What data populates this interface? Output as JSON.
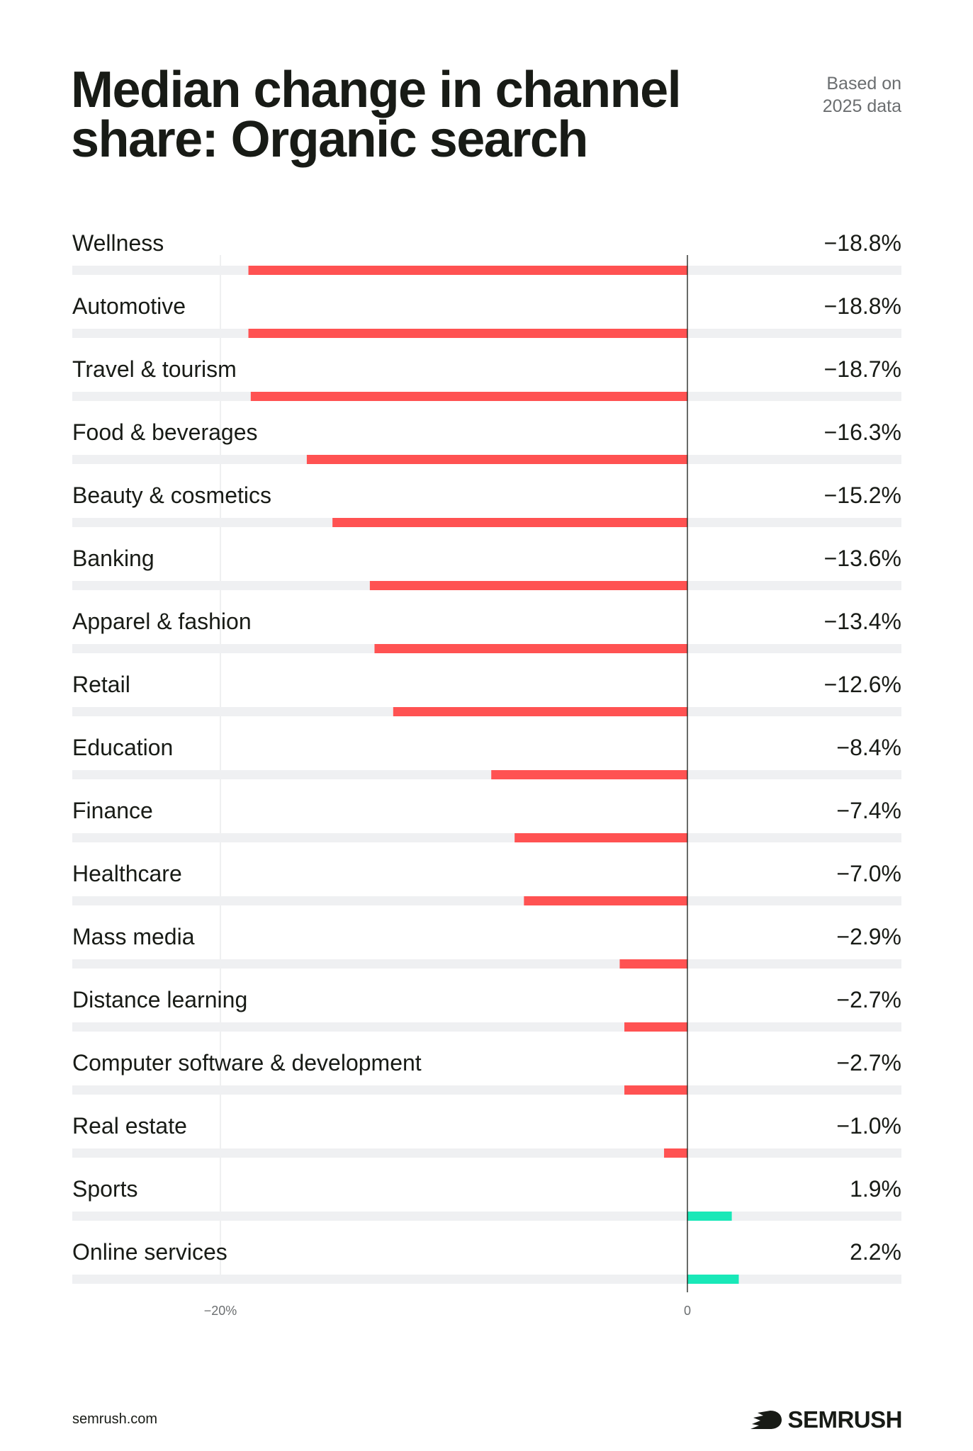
{
  "header": {
    "title": "Median change in channel share: Organic search",
    "note_line1": "Based on",
    "note_line2": "2025 data"
  },
  "chart_data": {
    "type": "bar",
    "orientation": "horizontal",
    "title": "Median change in channel share: Organic search",
    "categories": [
      "Wellness",
      "Automotive",
      "Travel & tourism",
      "Food & beverages",
      "Beauty & cosmetics",
      "Banking",
      "Apparel & fashion",
      "Retail",
      "Education",
      "Finance",
      "Healthcare",
      "Mass media",
      "Distance learning",
      "Computer software & development",
      "Real estate",
      "Sports",
      "Online services"
    ],
    "values": [
      -18.8,
      -18.8,
      -18.7,
      -16.3,
      -15.2,
      -13.6,
      -13.4,
      -12.6,
      -8.4,
      -7.4,
      -7.0,
      -2.9,
      -2.7,
      -2.7,
      -1.0,
      1.9,
      2.2
    ],
    "value_labels": [
      "−18.8%",
      "−18.8%",
      "−18.7%",
      "−16.3%",
      "−15.2%",
      "−13.6%",
      "−13.4%",
      "−12.6%",
      "−8.4%",
      "−7.4%",
      "−7.0%",
      "−2.9%",
      "−2.7%",
      "−2.7%",
      "−1.0%",
      "1.9%",
      "2.2%"
    ],
    "xlim": [
      -25,
      9
    ],
    "ticks": [
      {
        "value": -20,
        "label": "−20%"
      },
      {
        "value": 0,
        "label": "0"
      }
    ],
    "grid": true,
    "colors": {
      "negative": "#ff5252",
      "positive": "#19e8b8",
      "track": "#eff0f2",
      "zero_line": "#181b16",
      "grid": "#e6e7e9"
    }
  },
  "footer": {
    "url": "semrush.com",
    "brand": "SEMRUSH"
  }
}
